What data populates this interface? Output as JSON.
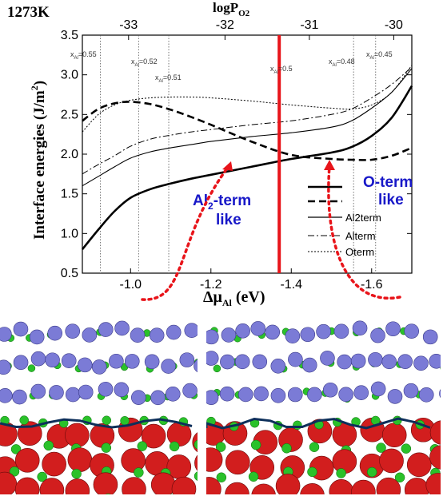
{
  "chart_data": {
    "type": "line",
    "title": "1273K",
    "xlabel_main": "Δμ",
    "xlabel_sub": "Al",
    "xlabel_unit": "(eV)",
    "ylabel": "Interface energies (J/m",
    "ylabel_sup": "2",
    "ylabel_end": ")",
    "top_axis_label_main": "logP",
    "top_axis_label_sub": "O2",
    "xlim": [
      -0.88,
      -1.7
    ],
    "ylim": [
      0.5,
      3.5
    ],
    "x_ticks": [
      -1.0,
      -1.2,
      -1.4,
      -1.6
    ],
    "x_tick_labels": [
      "-1.0",
      "-1.2",
      "-1.4",
      "-1.6"
    ],
    "y_ticks": [
      0.5,
      1.0,
      1.5,
      2.0,
      2.5,
      3.0,
      3.5
    ],
    "y_tick_labels": [
      "0.5",
      "1.0",
      "1.5",
      "2.0",
      "2.5",
      "3.0",
      "3.5"
    ],
    "top_ticks": [
      {
        "label": "-33",
        "x": -0.995
      },
      {
        "label": "-32",
        "x": -1.235
      },
      {
        "label": "-31",
        "x": -1.445
      },
      {
        "label": "-30",
        "x": -1.655
      }
    ],
    "composition_lines": [
      {
        "x": -0.925,
        "label": "0.55"
      },
      {
        "x": -1.02,
        "label": "0.52"
      },
      {
        "x": -1.095,
        "label": "0.51"
      },
      {
        "x": -1.555,
        "label": "0.48"
      },
      {
        "x": -1.61,
        "label": "0.45"
      }
    ],
    "composition_prefix": "x",
    "composition_prefix_sub": "Al",
    "composition_prefix_eq": "=",
    "marker_line": {
      "x": -1.37,
      "label": "0.5",
      "color": "#e8141a"
    },
    "series": [
      {
        "name": "Al2term",
        "style": "thin-solid",
        "x": [
          -0.88,
          -0.92,
          -0.96,
          -1.0,
          -1.05,
          -1.1,
          -1.15,
          -1.2,
          -1.3,
          -1.4,
          -1.5,
          -1.55,
          -1.6,
          -1.65,
          -1.7
        ],
        "y": [
          1.6,
          1.72,
          1.84,
          1.95,
          2.03,
          2.08,
          2.12,
          2.16,
          2.22,
          2.27,
          2.34,
          2.42,
          2.58,
          2.78,
          3.08
        ]
      },
      {
        "name": "Alterm",
        "style": "dash-dot",
        "x": [
          -0.88,
          -0.92,
          -0.96,
          -1.0,
          -1.05,
          -1.1,
          -1.15,
          -1.2,
          -1.3,
          -1.4,
          -1.5,
          -1.55,
          -1.6,
          -1.65,
          -1.7
        ],
        "y": [
          1.75,
          1.87,
          1.98,
          2.1,
          2.19,
          2.24,
          2.28,
          2.31,
          2.37,
          2.42,
          2.5,
          2.57,
          2.71,
          2.88,
          3.1
        ]
      },
      {
        "name": "Oterm",
        "style": "dotted",
        "x": [
          -0.88,
          -0.92,
          -0.96,
          -1.0,
          -1.05,
          -1.1,
          -1.15,
          -1.2,
          -1.3,
          -1.4,
          -1.5,
          -1.55,
          -1.6,
          -1.65,
          -1.7
        ],
        "y": [
          2.28,
          2.5,
          2.62,
          2.68,
          2.71,
          2.72,
          2.72,
          2.71,
          2.67,
          2.62,
          2.58,
          2.57,
          2.62,
          2.78,
          3.12
        ]
      },
      {
        "name": "",
        "style": "thick-solid",
        "x": [
          -0.88,
          -0.92,
          -0.96,
          -1.0,
          -1.05,
          -1.1,
          -1.15,
          -1.2,
          -1.3,
          -1.4,
          -1.5,
          -1.55,
          -1.6,
          -1.65,
          -1.7
        ],
        "y": [
          0.8,
          1.05,
          1.28,
          1.45,
          1.56,
          1.63,
          1.69,
          1.74,
          1.84,
          1.94,
          2.02,
          2.09,
          2.23,
          2.46,
          2.86
        ]
      },
      {
        "name": "",
        "style": "thick-dash",
        "x": [
          -0.88,
          -0.92,
          -0.96,
          -1.0,
          -1.05,
          -1.1,
          -1.15,
          -1.2,
          -1.3,
          -1.4,
          -1.5,
          -1.55,
          -1.6,
          -1.65,
          -1.7
        ],
        "y": [
          2.42,
          2.57,
          2.64,
          2.66,
          2.63,
          2.56,
          2.47,
          2.37,
          2.16,
          1.99,
          1.94,
          1.93,
          1.93,
          1.98,
          2.08
        ]
      }
    ],
    "legend": [
      "Al2term",
      "Alterm",
      "Oterm"
    ],
    "legend_position": "bottom-right"
  },
  "annotations": {
    "left_line1": "Al",
    "left_line1_sub": "2",
    "left_line1_end": "-term",
    "left_line2": "like",
    "right_line1": "O-term",
    "right_line2": "like",
    "color": "#1818c8",
    "arrow_color": "#e8141a"
  },
  "panels": {
    "left": {
      "interface": "Al2-term like",
      "rows": 3
    },
    "right": {
      "interface": "O-term like",
      "rows": 3
    },
    "atom_colors": {
      "oxygen": "#d21e1e",
      "aluminium": "#2ac12a",
      "metal": "#7b7bd6"
    }
  }
}
